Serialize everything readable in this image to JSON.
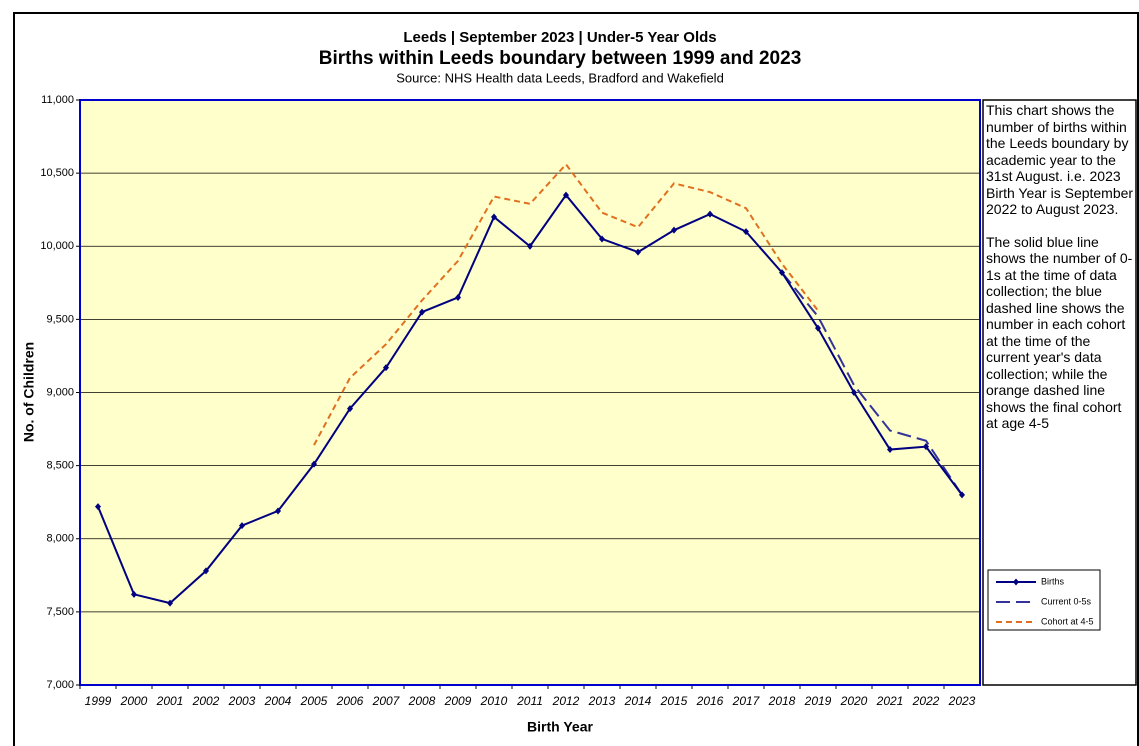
{
  "chart_data": {
    "type": "line",
    "supertitle": "Leeds | September 2023 | Under-5 Year Olds",
    "title": "Births within Leeds boundary between 1999 and 2023",
    "subtitle": "Source: NHS Health data Leeds, Bradford and Wakefield",
    "xlabel": "Birth Year",
    "ylabel": "No. of Children",
    "categories": [
      "1999",
      "2000",
      "2001",
      "2002",
      "2003",
      "2004",
      "2005",
      "2006",
      "2007",
      "2008",
      "2009",
      "2010",
      "2011",
      "2012",
      "2013",
      "2014",
      "2015",
      "2016",
      "2017",
      "2018",
      "2019",
      "2020",
      "2021",
      "2022",
      "2023"
    ],
    "series": [
      {
        "name": "Births",
        "color": "#000080",
        "dash": "solid",
        "markers": true,
        "values": [
          8220,
          7620,
          7560,
          7780,
          8090,
          8190,
          8510,
          8890,
          9170,
          9550,
          9650,
          10200,
          10000,
          10350,
          10050,
          9960,
          10110,
          10220,
          10100,
          9820,
          9440,
          9000,
          8610,
          8630,
          8300
        ]
      },
      {
        "name": "Current 0-5s",
        "color": "#333399",
        "dash": "long",
        "markers": false,
        "values": [
          null,
          null,
          null,
          null,
          null,
          null,
          null,
          null,
          null,
          null,
          null,
          null,
          null,
          null,
          null,
          null,
          null,
          null,
          null,
          9820,
          9520,
          9050,
          8740,
          8670,
          8300
        ]
      },
      {
        "name": "Cohort at 4-5",
        "color": "#e07020",
        "dash": "short",
        "markers": false,
        "values": [
          null,
          null,
          null,
          null,
          null,
          null,
          8640,
          9100,
          9330,
          9630,
          9900,
          10340,
          10290,
          10560,
          10230,
          10130,
          10430,
          10370,
          10260,
          9880,
          9560,
          null,
          null,
          null,
          null
        ]
      }
    ],
    "ylim": [
      7000,
      11000
    ],
    "yticks": [
      {
        "value": 7000,
        "label": "7,000"
      },
      {
        "value": 7500,
        "label": "7,500"
      },
      {
        "value": 8000,
        "label": "8,000"
      },
      {
        "value": 8500,
        "label": "8,500"
      },
      {
        "value": 9000,
        "label": "9,000"
      },
      {
        "value": 9500,
        "label": "9,500"
      },
      {
        "value": 10000,
        "label": "10,000"
      },
      {
        "value": 10500,
        "label": "10,500"
      },
      {
        "value": 11000,
        "label": "11,000"
      }
    ],
    "grid": true,
    "legend": "right",
    "note": [
      "This chart shows the number of births within the Leeds boundary by academic year to the 31st August.   i.e. 2023 Birth Year is September 2022 to August 2023.",
      "The solid blue line shows the number of 0-1s at the time of data collection; the blue dashed line shows the number in each cohort at the time of the current year's data collection; while the orange dashed line shows the final cohort at age 4-5"
    ]
  }
}
